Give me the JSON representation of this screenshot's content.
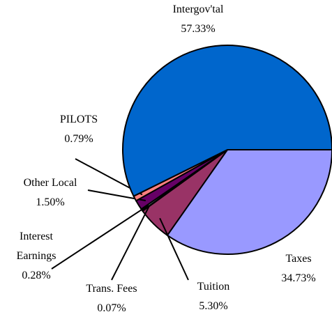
{
  "chart_data": {
    "type": "pie",
    "categories": [
      "Taxes",
      "Tuition",
      "Trans. Fees",
      "Interest Earnings",
      "Other Local",
      "PILOTS",
      "Intergov'tal"
    ],
    "values": [
      34.73,
      5.3,
      0.07,
      0.28,
      1.5,
      0.79,
      57.33
    ],
    "value_labels": [
      "34.73%",
      "5.30%",
      "0.07%",
      "0.28%",
      "1.50%",
      "0.79%",
      "57.33%"
    ],
    "colors": [
      "#9999ff",
      "#993366",
      "#ffffcc",
      "#ccffff",
      "#660066",
      "#ff8080",
      "#0066cc"
    ]
  }
}
